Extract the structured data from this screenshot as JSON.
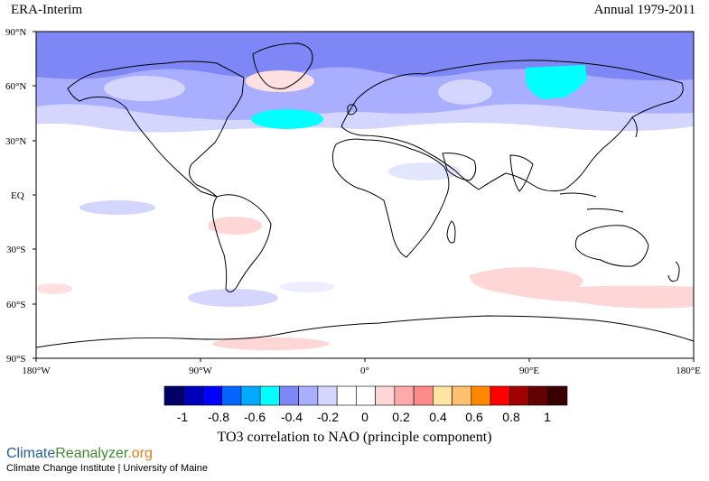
{
  "header": {
    "dataset": "ERA-Interim",
    "period": "Annual 1979-2011"
  },
  "map": {
    "lat_labels": [
      "90°N",
      "60°N",
      "30°N",
      "EQ",
      "30°S",
      "60°S",
      "90°S"
    ],
    "lon_labels": [
      "180°W",
      "90°W",
      "0°",
      "90°E",
      "180°E"
    ],
    "lat_range": [
      -90,
      90
    ],
    "lon_range": [
      -180,
      180
    ],
    "projection": "equirectangular"
  },
  "legend": {
    "tick_labels": [
      "-1",
      "-0.8",
      "-0.6",
      "-0.4",
      "-0.2",
      "0",
      "0.2",
      "0.4",
      "0.6",
      "0.8",
      "1"
    ],
    "bin_colors": [
      "#000066",
      "#0000bb",
      "#0000ff",
      "#0066ff",
      "#00aaff",
      "#00ffff",
      "#7e87f5",
      "#a9aeff",
      "#d4d6ff",
      "#ffffff",
      "#ffffff",
      "#ffd6d6",
      "#ffaaaa",
      "#ff8a8a",
      "#ffe4a4",
      "#ffc070",
      "#ff8800",
      "#ff0000",
      "#a00000",
      "#600000",
      "#3a0000"
    ],
    "caption": "TO3 correlation to NAO (principle component)"
  },
  "footer": {
    "brand_part1": "Climate",
    "brand_part2": "Reanalyzer",
    "brand_part3": ".org",
    "institute": "Climate Change Institute | University of Maine"
  }
}
